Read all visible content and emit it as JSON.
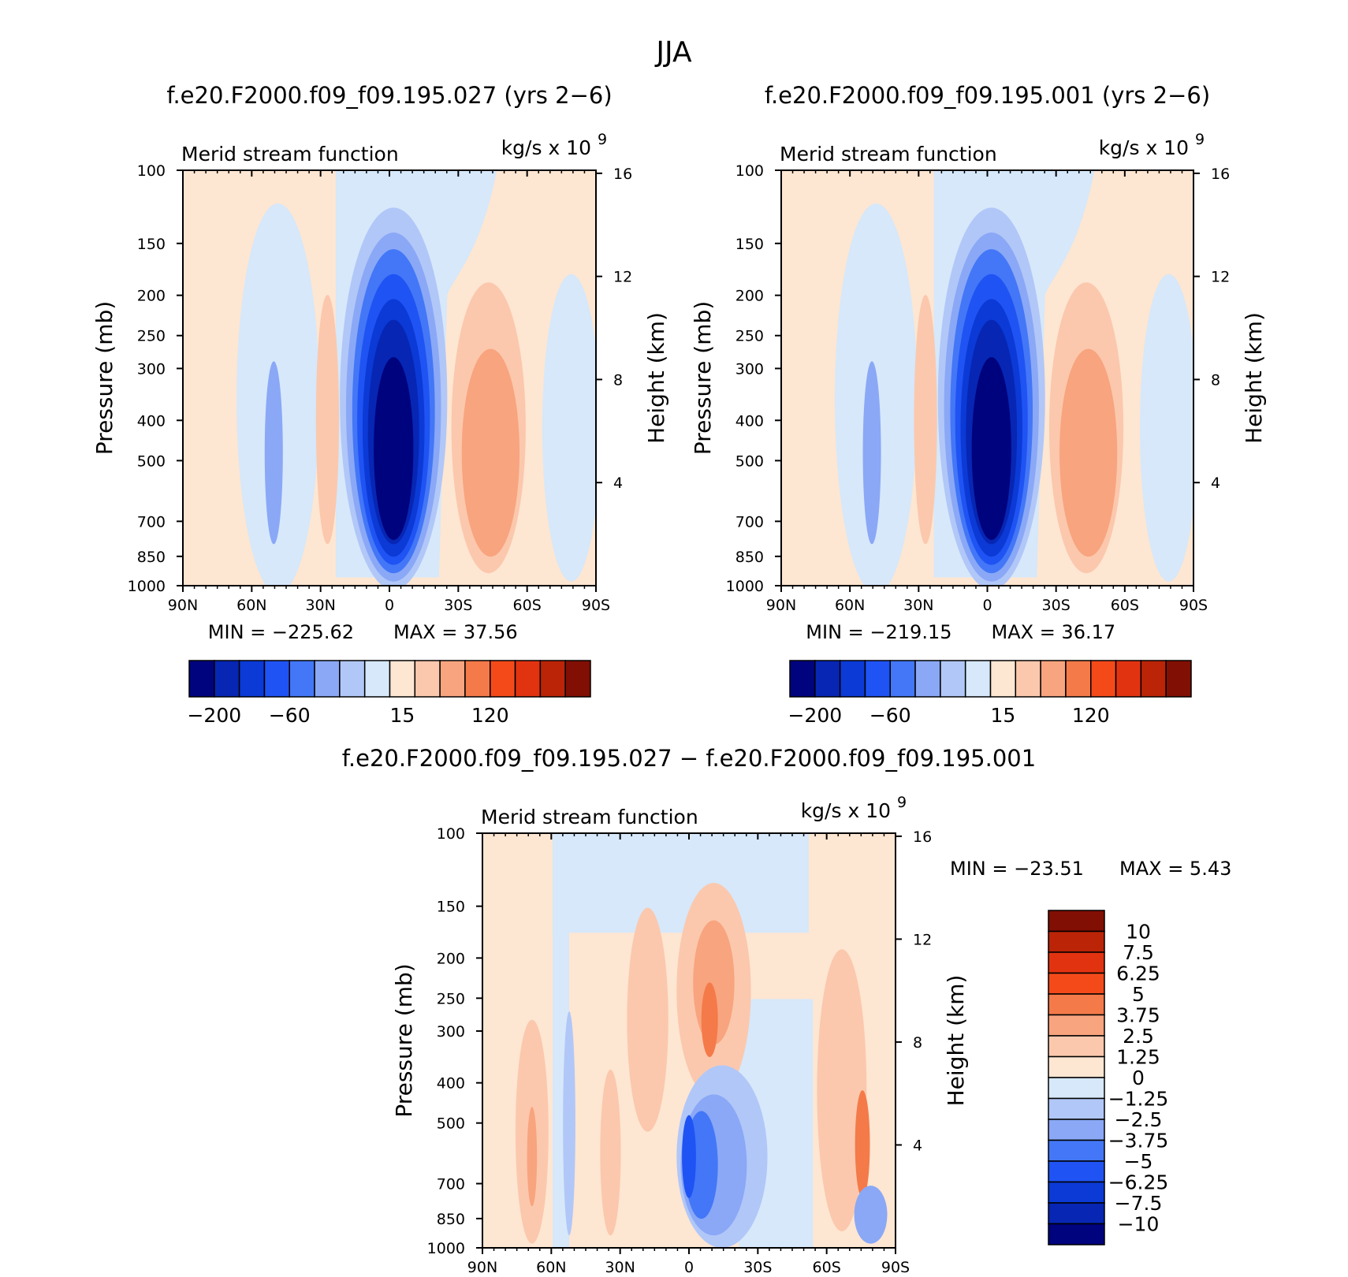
{
  "title": "JJA",
  "panels": [
    {
      "id": "p1",
      "subtitle": "f.e20.F2000.f09_f09.195.027 (yrs 2−6)",
      "left_label": "Merid stream function",
      "right_label": "kg/s x 10",
      "right_label_exp": "9",
      "ylabel": "Pressure (mb)",
      "ylabel_right": "Height (km)",
      "min_text": "MIN = −225.62",
      "max_text": "MAX = 37.56"
    },
    {
      "id": "p2",
      "subtitle": "f.e20.F2000.f09_f09.195.001 (yrs 2−6)",
      "left_label": "Merid stream function",
      "right_label": "kg/s x 10",
      "right_label_exp": "9",
      "ylabel": "Pressure (mb)",
      "ylabel_right": "Height (km)",
      "min_text": "MIN = −219.15",
      "max_text": "MAX = 36.17"
    },
    {
      "id": "p3",
      "subtitle": "f.e20.F2000.f09_f09.195.027 − f.e20.F2000.f09_f09.195.001",
      "left_label": "Merid stream function",
      "right_label": "kg/s x 10",
      "right_label_exp": "9",
      "ylabel": "Pressure (mb)",
      "ylabel_right": "Height (km)",
      "min_text": "MIN = −23.51",
      "max_text": "MAX = 5.43"
    }
  ],
  "colors": {
    "blues": [
      "#00037e",
      "#0726b4",
      "#0b3ad6",
      "#1f53f3",
      "#4377f7",
      "#8aa8f6",
      "#b1c7f8",
      "#d6e8fa"
    ],
    "reds": [
      "#fde6d2",
      "#fbc8ad",
      "#f8a47e",
      "#f47a4a",
      "#f44a1a",
      "#e23311",
      "#bb2407",
      "#820f04"
    ]
  },
  "chart_data": [
    {
      "type": "contour",
      "panel": "p1",
      "x": [
        "90N",
        "60N",
        "30N",
        "0",
        "30S",
        "60S",
        "90S"
      ],
      "y_pressure_ticks": [
        100,
        150,
        200,
        250,
        300,
        400,
        500,
        700,
        850,
        1000
      ],
      "y_height_ticks": [
        16,
        12,
        8,
        4
      ],
      "min": -225.62,
      "max": 37.56,
      "colorbar_labels": [
        "−200",
        "−60",
        "15",
        "120"
      ]
    },
    {
      "type": "contour",
      "panel": "p2",
      "x": [
        "90N",
        "60N",
        "30N",
        "0",
        "30S",
        "60S",
        "90S"
      ],
      "y_pressure_ticks": [
        100,
        150,
        200,
        250,
        300,
        400,
        500,
        700,
        850,
        1000
      ],
      "y_height_ticks": [
        16,
        12,
        8,
        4
      ],
      "min": -219.15,
      "max": 36.17,
      "colorbar_labels": [
        "−200",
        "−60",
        "15",
        "120"
      ]
    },
    {
      "type": "contour",
      "panel": "p3",
      "x": [
        "90N",
        "60N",
        "30N",
        "0",
        "30S",
        "60S",
        "90S"
      ],
      "y_pressure_ticks": [
        100,
        150,
        200,
        250,
        300,
        400,
        500,
        700,
        850,
        1000
      ],
      "y_height_ticks": [
        16,
        12,
        8,
        4
      ],
      "min": -23.51,
      "max": 5.43,
      "colorbar_labels": [
        "10",
        "7.5",
        "6.25",
        "5",
        "3.75",
        "2.5",
        "1.25",
        "0",
        "−1.25",
        "−2.5",
        "−3.75",
        "−5",
        "−6.25",
        "−7.5",
        "−10"
      ]
    }
  ]
}
